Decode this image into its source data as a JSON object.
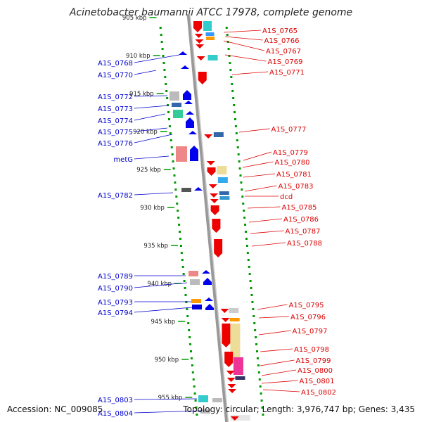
{
  "title": "Acinetobacter baumannii ATCC 17978, complete genome",
  "accession": "Accession: NC_009085",
  "topology": "Topology: circular; Length: 3,976,747 bp; Genes: 3,435",
  "colors": {
    "backbone": "#999999",
    "left_labels": "#0000cc",
    "right_labels": "#dd0000",
    "tick_marks": "#009900",
    "reverse_genes": "#ee0000",
    "forward_genes": "#0000ee"
  },
  "chart_data": {
    "type": "genome-map",
    "scale_labels": [
      {
        "kbp": 905,
        "text": "905 kbp"
      },
      {
        "kbp": 910,
        "text": "910 kbp"
      },
      {
        "kbp": 915,
        "text": "915 kbp"
      },
      {
        "kbp": 920,
        "text": "920 kbp"
      },
      {
        "kbp": 925,
        "text": "925 kbp"
      },
      {
        "kbp": 930,
        "text": "930 kbp"
      },
      {
        "kbp": 935,
        "text": "935 kbp"
      },
      {
        "kbp": 940,
        "text": "940 kbp"
      },
      {
        "kbp": 945,
        "text": "945 kbp"
      },
      {
        "kbp": 950,
        "text": "950 kbp"
      },
      {
        "kbp": 955,
        "text": "955 kbp"
      }
    ],
    "left_labels": [
      "A1S_0768",
      "A1S_0770",
      "A1S_0772",
      "A1S_0773",
      "A1S_0774",
      "A1S_0775",
      "A1S_0776",
      "metG",
      "A1S_0782",
      "A1S_0789",
      "A1S_0790",
      "A1S_0793",
      "A1S_0794",
      "A1S_0803",
      "A1S_0804"
    ],
    "right_labels": [
      "A1S_0765",
      "A1S_0766",
      "A1S_0767",
      "A1S_0769",
      "A1S_0771",
      "A1S_0777",
      "A1S_0779",
      "A1S_0780",
      "A1S_0781",
      "A1S_0783",
      "dcd",
      "A1S_0785",
      "A1S_0786",
      "A1S_0787",
      "A1S_0788",
      "A1S_0795",
      "A1S_0796",
      "A1S_0797",
      "A1S_0798",
      "A1S_0799",
      "A1S_0800",
      "A1S_0801",
      "A1S_0802"
    ]
  }
}
